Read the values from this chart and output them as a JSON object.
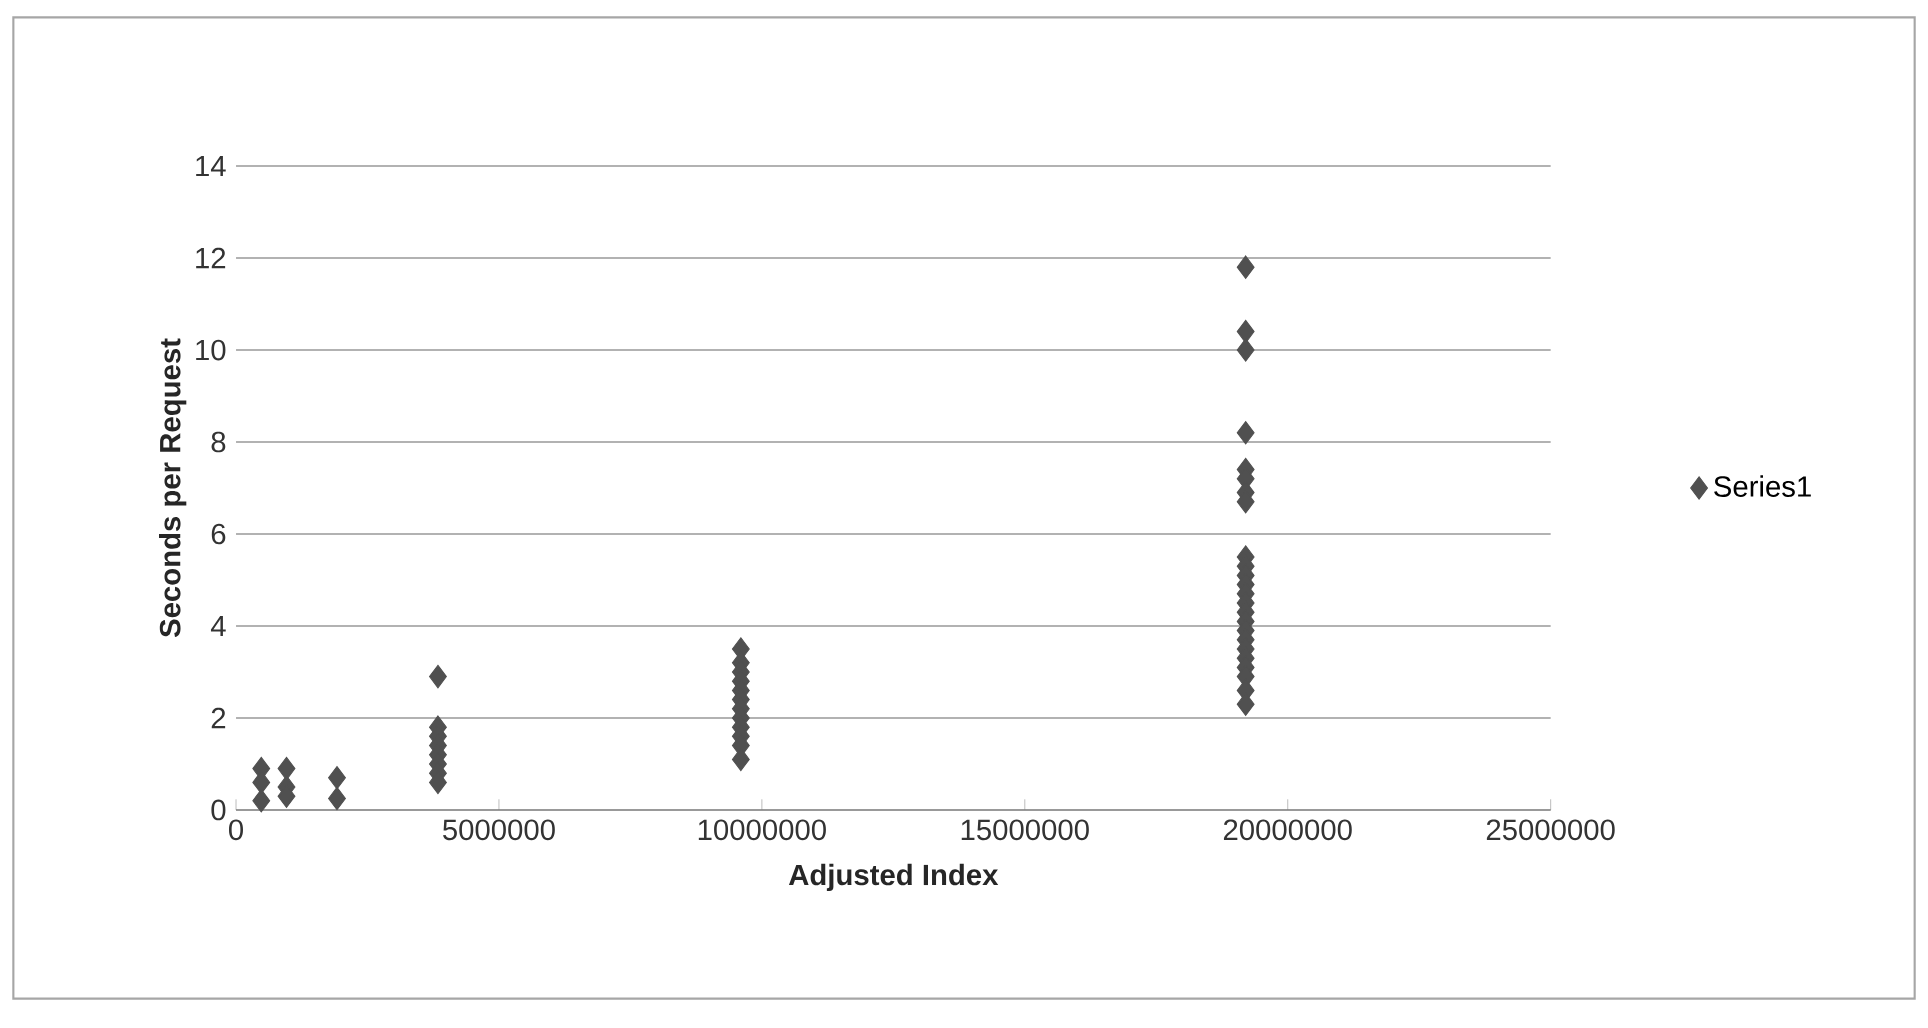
{
  "chart_data": {
    "type": "scatter",
    "xlabel": "Adjusted Index",
    "ylabel": "Seconds per Request",
    "xlim": [
      0,
      25000000
    ],
    "xticks": [
      0,
      5000000,
      10000000,
      15000000,
      20000000,
      25000000
    ],
    "ylim": [
      0,
      14
    ],
    "yticks": [
      0,
      2,
      4,
      6,
      8,
      10,
      12,
      14
    ],
    "grid": "y",
    "legend": "right",
    "marker": "diamond",
    "series": [
      {
        "name": "Series1",
        "color": "#505050",
        "x": [
          480000,
          480000,
          480000,
          960000,
          960000,
          960000,
          1920000,
          1920000,
          3840000,
          3840000,
          3840000,
          3840000,
          3840000,
          3840000,
          3840000,
          3840000,
          9600000,
          9600000,
          9600000,
          9600000,
          9600000,
          9600000,
          9600000,
          9600000,
          9600000,
          9600000,
          9600000,
          9600000,
          19200000,
          19200000,
          19200000,
          19200000,
          19200000,
          19200000,
          19200000,
          19200000,
          19200000,
          19200000,
          19200000,
          19200000,
          19200000,
          19200000,
          19200000,
          19200000,
          19200000,
          19200000,
          19200000,
          19200000,
          19200000,
          19200000,
          19200000,
          19200000
        ],
        "values": [
          0.9,
          0.6,
          0.2,
          0.9,
          0.5,
          0.3,
          0.7,
          0.25,
          2.9,
          1.8,
          1.6,
          1.4,
          1.2,
          1.0,
          0.8,
          0.6,
          3.5,
          3.2,
          3.0,
          2.8,
          2.6,
          2.4,
          2.2,
          2.0,
          1.8,
          1.6,
          1.4,
          1.1,
          11.8,
          10.4,
          10.0,
          8.2,
          7.4,
          7.2,
          6.9,
          6.7,
          5.5,
          5.3,
          5.1,
          4.9,
          4.7,
          4.5,
          4.3,
          4.1,
          3.9,
          3.7,
          3.5,
          3.3,
          3.1,
          2.9,
          2.6,
          2.3
        ]
      }
    ]
  }
}
